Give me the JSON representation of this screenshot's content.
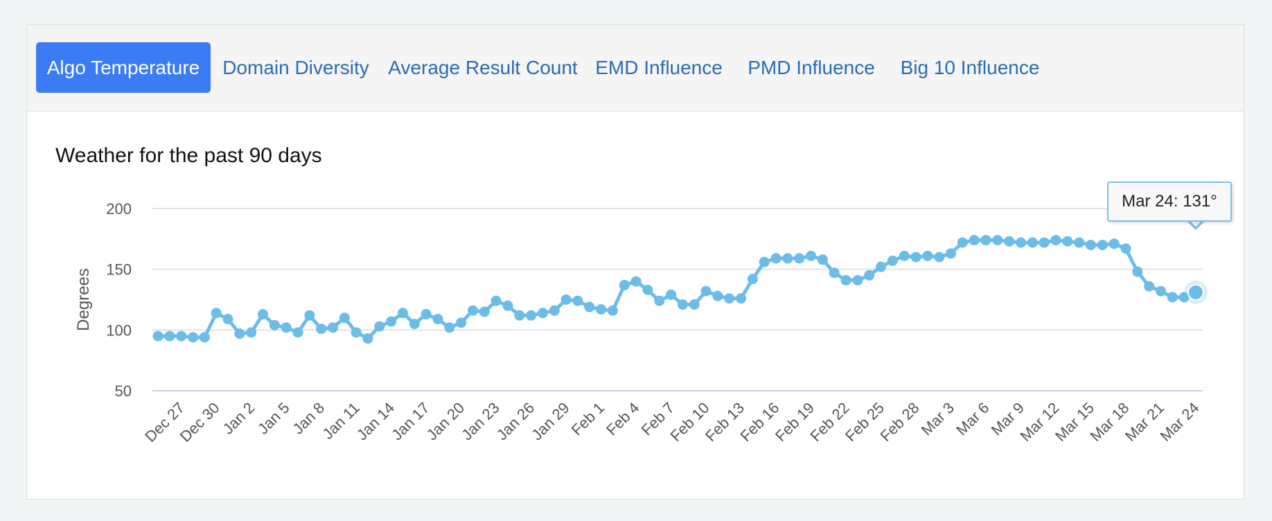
{
  "tabs": [
    {
      "label": "Algo Temperature",
      "active": true
    },
    {
      "label": "Domain Diversity",
      "active": false
    },
    {
      "label": "Average Result Count",
      "active": false
    },
    {
      "label": "EMD Influence",
      "active": false
    },
    {
      "label": "PMD Influence",
      "active": false
    },
    {
      "label": "Big 10 Influence",
      "active": false
    }
  ],
  "colors": {
    "accent": "#3b7cf4",
    "tab_text": "#2a6cb4",
    "series": "#6cbce8",
    "grid": "#e3e3e3",
    "axis": "#c6cdf4"
  },
  "tooltip": {
    "text": "Mar 24: 131°"
  },
  "chart_data": {
    "type": "line",
    "title": "Weather for the past 90 days",
    "xlabel": "",
    "ylabel": "Degrees",
    "ylim": [
      50,
      200
    ],
    "yticks": [
      200,
      150,
      100,
      50
    ],
    "grid": true,
    "x_tick_labels": [
      "Dec 27",
      "Dec 30",
      "Jan 2",
      "Jan 5",
      "Jan 8",
      "Jan 11",
      "Jan 14",
      "Jan 17",
      "Jan 20",
      "Jan 23",
      "Jan 26",
      "Jan 29",
      "Feb 1",
      "Feb 4",
      "Feb 7",
      "Feb 10",
      "Feb 13",
      "Feb 16",
      "Feb 19",
      "Feb 22",
      "Feb 25",
      "Feb 28",
      "Mar 3",
      "Mar 6",
      "Mar 9",
      "Mar 12",
      "Mar 15",
      "Mar 18",
      "Mar 21",
      "Mar 24"
    ],
    "series": [
      {
        "values": [
          95,
          95,
          95,
          94,
          94,
          114,
          109,
          97,
          98,
          113,
          104,
          102,
          98,
          112,
          101,
          102,
          110,
          98,
          93,
          103,
          107,
          114,
          105,
          113,
          109,
          102,
          106,
          116,
          115,
          124,
          120,
          112,
          112,
          114,
          116,
          125,
          124,
          119,
          117,
          116,
          137,
          140,
          133,
          124,
          129,
          121,
          121,
          132,
          128,
          126,
          126,
          142,
          156,
          159,
          159,
          159,
          161,
          158,
          147,
          141,
          141,
          145,
          152,
          157,
          161,
          160,
          161,
          160,
          163,
          172,
          174,
          174,
          174,
          173,
          172,
          172,
          172,
          174,
          173,
          172,
          170,
          170,
          171,
          167,
          148,
          136,
          132,
          127,
          127,
          131
        ]
      }
    ],
    "highlight": {
      "x": "Mar 24",
      "y": 131
    }
  }
}
